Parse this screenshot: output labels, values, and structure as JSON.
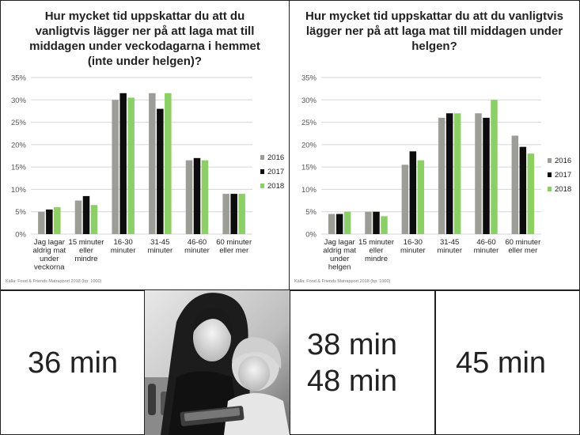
{
  "colors": {
    "2016": "#9d9d98",
    "2017": "#0d0d0d",
    "2018": "#8ccf66"
  },
  "chart_data": [
    {
      "type": "bar",
      "title": "Hur mycket tid uppskattar du att du vanligtvis lägger ner på att laga mat till middagen under veckodagarna i hemmet (inte under helgen)?",
      "categories": [
        "Jag lagar aldrig mat under veckorna",
        "15 minuter eller mindre",
        "16-30 minuter",
        "31-45 minuter",
        "46-60 minuter",
        "60 minuter eller mer"
      ],
      "series": [
        {
          "name": "2016",
          "values": [
            5,
            7.5,
            30,
            31.5,
            16.5,
            9
          ]
        },
        {
          "name": "2017",
          "values": [
            5.5,
            8.5,
            31.5,
            28,
            17,
            9
          ]
        },
        {
          "name": "2018",
          "values": [
            6,
            6.5,
            30.5,
            31.5,
            16.5,
            9
          ]
        }
      ],
      "ylim": [
        0,
        35
      ],
      "yticks": [
        "0%",
        "5%",
        "10%",
        "15%",
        "20%",
        "25%",
        "30%",
        "35%"
      ],
      "legend": [
        "2016",
        "2017",
        "2018"
      ],
      "legend_position": "right",
      "grid": true,
      "source": "Källa: Food & Friends Matrapport 2018 (bp: 1000)"
    },
    {
      "type": "bar",
      "title": "Hur mycket tid uppskattar du att du vanligtvis lägger ner på att laga mat till middagen under helgen?",
      "categories": [
        "Jag lagar aldrig mat under helgen",
        "15 minuter eller mindre",
        "16-30 minuter",
        "31-45 minuter",
        "46-60 minuter",
        "60 minuter eller mer"
      ],
      "series": [
        {
          "name": "2016",
          "values": [
            4.5,
            5,
            15.5,
            26,
            27,
            22
          ]
        },
        {
          "name": "2017",
          "values": [
            4.5,
            5,
            18.5,
            27,
            26,
            19.5
          ]
        },
        {
          "name": "2018",
          "values": [
            5,
            4,
            16.5,
            27,
            30,
            18
          ]
        }
      ],
      "ylim": [
        0,
        35
      ],
      "yticks": [
        "0%",
        "5%",
        "10%",
        "15%",
        "20%",
        "25%",
        "30%",
        "35%"
      ],
      "legend": [
        "2016",
        "2017",
        "2018"
      ],
      "legend_position": "right",
      "grid": true,
      "source": "Källa: Food & Friends Matrapport 2018 (bp: 1000)"
    }
  ],
  "stats": {
    "weekday": "36 min",
    "weekend_line1": "38 min",
    "weekend_line2": "48 min",
    "other": "45 min"
  }
}
